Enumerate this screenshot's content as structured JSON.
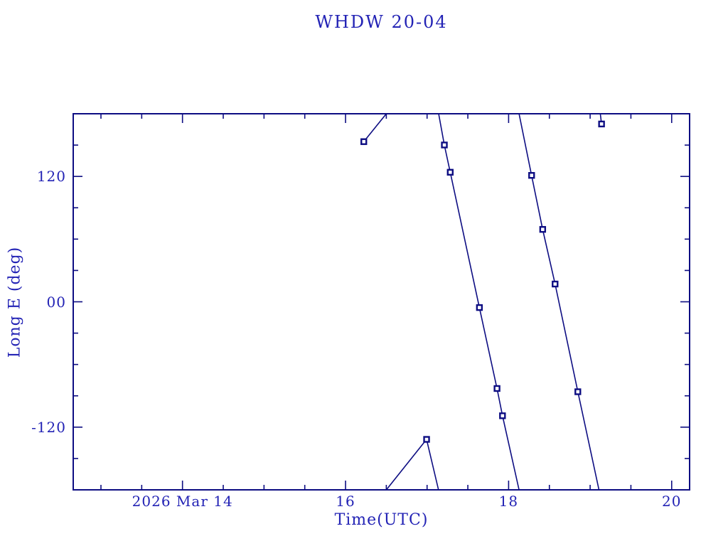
{
  "window": {
    "background": "#ffffff"
  },
  "colors": {
    "line": "#0d0d82",
    "text": "#2323b5",
    "marker_fill": "#ffffff"
  },
  "chart_data": {
    "type": "line",
    "title": "WHDW 20-04",
    "xlabel": "Time(UTC)",
    "ylabel": "Long E (deg)",
    "grid": false,
    "legend": "none",
    "x_axis": {
      "unit": "hours UTC on 2026 Mar 14",
      "range": [
        12.66,
        20.22
      ],
      "major_ticks": [
        {
          "value": 14,
          "label": "2026 Mar 14"
        },
        {
          "value": 16,
          "label": "16"
        },
        {
          "value": 18,
          "label": "18"
        },
        {
          "value": 20,
          "label": "20"
        }
      ],
      "minor_tick_step": 0.5,
      "minor_tick_start": 13.0,
      "minor_tick_end": 20.0
    },
    "y_axis": {
      "range": [
        -180,
        180
      ],
      "major_ticks": [
        {
          "value": 120,
          "label": "120"
        },
        {
          "value": 0,
          "label": "00"
        },
        {
          "value": -120,
          "label": "-120"
        }
      ],
      "minor_tick_step": 30
    },
    "series": [
      {
        "name": "longitude-ground-track",
        "wraps_at": 180,
        "segments": [
          [
            [
              16.224,
              153.3
            ],
            [
              16.5,
              180
            ]
          ],
          [
            [
              16.5,
              -180
            ],
            [
              16.994,
              -131.7
            ]
          ],
          [
            [
              16.994,
              -131.7
            ],
            [
              17.14,
              -180
            ]
          ],
          [
            [
              17.142,
              180
            ],
            [
              17.212,
              150.1
            ],
            [
              17.284,
              124.0
            ],
            [
              17.642,
              -5.5
            ],
            [
              17.858,
              -83.0
            ],
            [
              17.925,
              -109.1
            ],
            [
              18.128,
              -180
            ]
          ],
          [
            [
              18.128,
              180
            ],
            [
              18.282,
              121.0
            ],
            [
              18.418,
              69.3
            ],
            [
              18.57,
              17.0
            ],
            [
              18.849,
              -86.1
            ],
            [
              19.108,
              -180
            ]
          ],
          [
            [
              19.125,
              180
            ],
            [
              19.14,
              170.2
            ]
          ]
        ],
        "markers": [
          [
            16.224,
            153.3
          ],
          [
            16.994,
            -131.7
          ],
          [
            17.212,
            150.1
          ],
          [
            17.284,
            124.0
          ],
          [
            17.642,
            -5.5
          ],
          [
            17.858,
            -83.0
          ],
          [
            17.925,
            -109.1
          ],
          [
            18.282,
            121.0
          ],
          [
            18.418,
            69.3
          ],
          [
            18.57,
            17.0
          ],
          [
            18.849,
            -86.1
          ],
          [
            19.14,
            170.2
          ]
        ]
      }
    ]
  }
}
